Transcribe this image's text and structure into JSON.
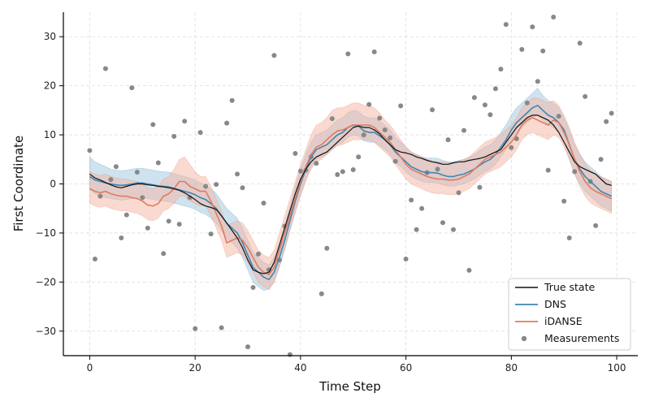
{
  "chart_data": {
    "type": "line",
    "title": "",
    "xlabel": "Time Step",
    "ylabel": "First Coordinate",
    "xlim": [
      -5,
      104
    ],
    "ylim": [
      -35,
      35
    ],
    "xticks": [
      0,
      20,
      40,
      60,
      80,
      100
    ],
    "yticks": [
      -30,
      -20,
      -10,
      0,
      10,
      20,
      30
    ],
    "xtick_labels": [
      "0",
      "20",
      "40",
      "60",
      "80",
      "100"
    ],
    "ytick_labels": [
      "−30",
      "−20",
      "−10",
      "0",
      "10",
      "20",
      "30"
    ],
    "grid": true,
    "legend_position": "bottom-right",
    "x": [
      0,
      1,
      2,
      3,
      4,
      5,
      6,
      7,
      8,
      9,
      10,
      11,
      12,
      13,
      14,
      15,
      16,
      17,
      18,
      19,
      20,
      21,
      22,
      23,
      24,
      25,
      26,
      27,
      28,
      29,
      30,
      31,
      32,
      33,
      34,
      35,
      36,
      37,
      38,
      39,
      40,
      41,
      42,
      43,
      44,
      45,
      46,
      47,
      48,
      49,
      50,
      51,
      52,
      53,
      54,
      55,
      56,
      57,
      58,
      59,
      60,
      61,
      62,
      63,
      64,
      65,
      66,
      67,
      68,
      69,
      70,
      71,
      72,
      73,
      74,
      75,
      76,
      77,
      78,
      79,
      80,
      81,
      82,
      83,
      84,
      85,
      86,
      87,
      88,
      89,
      90,
      91,
      92,
      93,
      94,
      95,
      96,
      97,
      98,
      99
    ],
    "series": [
      {
        "name": "True state",
        "color": "#111111",
        "values": [
          2.0,
          1.2,
          0.8,
          0.3,
          -0.2,
          -0.6,
          -0.8,
          -0.5,
          -0.2,
          0.0,
          0.0,
          -0.2,
          -0.3,
          -0.5,
          -0.6,
          -0.8,
          -1.0,
          -1.3,
          -1.8,
          -2.5,
          -3.2,
          -4.0,
          -4.5,
          -4.8,
          -5.2,
          -6.5,
          -8.0,
          -9.5,
          -11.0,
          -13.0,
          -15.5,
          -17.5,
          -18.0,
          -18.3,
          -18.0,
          -16.0,
          -12.5,
          -9.0,
          -5.5,
          -2.0,
          1.0,
          3.0,
          4.5,
          5.5,
          6.0,
          6.5,
          7.5,
          8.5,
          9.5,
          10.5,
          11.5,
          11.8,
          11.5,
          11.5,
          11.0,
          10.2,
          9.0,
          8.0,
          7.0,
          6.5,
          6.3,
          6.0,
          5.5,
          5.2,
          4.8,
          4.5,
          4.3,
          4.0,
          4.0,
          4.3,
          4.5,
          4.5,
          4.8,
          5.0,
          5.2,
          5.5,
          6.0,
          6.5,
          7.0,
          8.5,
          10.0,
          11.5,
          12.5,
          13.5,
          14.0,
          14.0,
          13.5,
          13.0,
          12.0,
          10.5,
          8.5,
          6.5,
          4.5,
          3.5,
          3.0,
          2.5,
          2.0,
          1.0,
          0.0,
          -0.3
        ]
      },
      {
        "name": "DNS",
        "color": "#3d86b5",
        "band_color": "#9fc8de",
        "values": [
          1.5,
          0.8,
          0.5,
          0.2,
          0.0,
          -0.2,
          -0.3,
          -0.2,
          0.0,
          0.2,
          0.2,
          0.0,
          -0.2,
          -0.4,
          -0.5,
          -0.6,
          -0.9,
          -1.2,
          -1.5,
          -1.8,
          -2.2,
          -2.8,
          -3.2,
          -4.0,
          -5.0,
          -6.5,
          -8.0,
          -9.0,
          -10.0,
          -12.0,
          -14.5,
          -17.0,
          -18.0,
          -19.0,
          -19.5,
          -18.0,
          -15.0,
          -11.5,
          -7.5,
          -3.5,
          0.0,
          3.0,
          5.5,
          7.0,
          7.5,
          8.0,
          9.0,
          10.0,
          10.5,
          11.5,
          12.0,
          11.8,
          10.8,
          10.5,
          10.5,
          9.8,
          9.0,
          8.0,
          6.5,
          5.5,
          4.5,
          3.5,
          3.0,
          2.5,
          2.3,
          2.3,
          2.2,
          1.8,
          1.5,
          1.5,
          1.8,
          2.0,
          2.5,
          3.0,
          3.8,
          4.5,
          5.0,
          6.0,
          7.5,
          9.0,
          11.0,
          12.5,
          13.5,
          14.5,
          15.5,
          16.0,
          15.0,
          14.0,
          13.5,
          12.5,
          11.0,
          8.0,
          5.0,
          3.0,
          1.5,
          0.5,
          -0.5,
          -1.5,
          -2.0,
          -2.5
        ],
        "lower": [
          -1.0,
          -2.0,
          -2.5,
          -2.8,
          -3.0,
          -3.2,
          -3.3,
          -3.2,
          -3.0,
          -2.8,
          -2.8,
          -3.0,
          -3.2,
          -3.4,
          -3.5,
          -3.6,
          -3.9,
          -4.2,
          -4.5,
          -4.8,
          -5.2,
          -5.8,
          -6.2,
          -7.0,
          -8.0,
          -9.5,
          -11.0,
          -12.0,
          -13.0,
          -15.0,
          -17.5,
          -20.0,
          -21.0,
          -21.7,
          -21.5,
          -20.0,
          -17.0,
          -13.5,
          -9.5,
          -5.5,
          -2.0,
          1.0,
          3.5,
          5.0,
          5.5,
          6.0,
          7.0,
          8.0,
          8.5,
          9.5,
          10.0,
          9.8,
          8.8,
          8.5,
          8.5,
          7.8,
          7.0,
          6.0,
          4.5,
          3.5,
          2.5,
          1.5,
          1.0,
          0.5,
          0.3,
          0.3,
          0.2,
          -0.2,
          -0.5,
          -0.5,
          -0.2,
          0.0,
          0.5,
          1.0,
          1.8,
          2.5,
          3.0,
          4.0,
          5.5,
          7.0,
          9.0,
          10.5,
          11.5,
          12.5,
          13.5,
          14.0,
          13.0,
          12.0,
          11.5,
          10.5,
          8.5,
          5.0,
          2.0,
          0.0,
          -1.5,
          -2.5,
          -3.5,
          -4.5,
          -5.0,
          -5.5
        ],
        "upper": [
          5.5,
          4.5,
          4.0,
          3.5,
          3.0,
          2.8,
          2.7,
          2.8,
          3.0,
          3.2,
          3.2,
          3.0,
          2.8,
          2.6,
          2.5,
          2.4,
          2.1,
          1.8,
          1.5,
          1.2,
          0.8,
          0.2,
          -0.2,
          -1.0,
          -2.0,
          -3.5,
          -5.0,
          -6.0,
          -7.0,
          -9.0,
          -11.5,
          -14.0,
          -15.0,
          -16.0,
          -16.5,
          -15.0,
          -12.0,
          -8.5,
          -4.5,
          -0.5,
          3.0,
          6.0,
          8.5,
          10.0,
          10.5,
          11.0,
          12.0,
          13.0,
          13.5,
          14.5,
          15.0,
          14.8,
          13.8,
          13.5,
          13.5,
          12.8,
          12.0,
          11.0,
          9.5,
          8.5,
          7.5,
          6.5,
          6.0,
          5.5,
          5.3,
          5.3,
          5.2,
          4.8,
          4.5,
          4.5,
          4.8,
          5.0,
          5.5,
          6.0,
          6.8,
          7.5,
          8.0,
          9.0,
          10.5,
          12.0,
          14.0,
          15.5,
          16.5,
          17.5,
          18.5,
          19.5,
          18.0,
          17.0,
          16.5,
          15.5,
          13.5,
          11.0,
          8.0,
          6.0,
          4.5,
          3.5,
          2.5,
          1.5,
          1.0,
          0.5
        ]
      },
      {
        "name": "iDANSE",
        "color": "#e07b5e",
        "band_color": "#f5b4a2",
        "values": [
          -1.0,
          -1.5,
          -1.8,
          -1.5,
          -2.0,
          -2.3,
          -2.5,
          -2.5,
          -2.8,
          -3.0,
          -3.5,
          -4.3,
          -4.5,
          -4.0,
          -2.5,
          -2.0,
          -1.0,
          0.5,
          0.5,
          -0.5,
          -1.0,
          -1.5,
          -1.5,
          -3.5,
          -6.0,
          -8.5,
          -12.0,
          -11.5,
          -11.0,
          -11.5,
          -13.0,
          -15.0,
          -17.0,
          -18.0,
          -18.5,
          -17.0,
          -13.5,
          -10.0,
          -6.5,
          -3.0,
          0.5,
          3.5,
          6.0,
          7.5,
          8.0,
          9.0,
          10.0,
          10.8,
          11.0,
          11.5,
          12.0,
          12.0,
          12.0,
          12.0,
          11.5,
          10.5,
          9.5,
          8.5,
          7.0,
          5.5,
          4.0,
          3.0,
          2.5,
          2.0,
          1.5,
          1.2,
          1.0,
          1.0,
          0.8,
          0.8,
          1.0,
          1.5,
          2.0,
          3.0,
          4.0,
          5.0,
          5.5,
          6.0,
          6.5,
          7.5,
          8.5,
          10.0,
          12.0,
          13.0,
          13.5,
          13.0,
          12.5,
          12.0,
          13.0,
          12.5,
          10.5,
          8.0,
          5.0,
          2.5,
          0.5,
          -0.8,
          -1.5,
          -2.0,
          -2.5,
          -3.0
        ],
        "lower": [
          -4.0,
          -4.5,
          -4.8,
          -4.5,
          -5.0,
          -5.3,
          -5.5,
          -5.5,
          -5.8,
          -6.0,
          -6.5,
          -7.3,
          -7.5,
          -7.0,
          -5.5,
          -5.0,
          -4.0,
          -2.5,
          -2.5,
          -3.5,
          -4.0,
          -4.5,
          -4.5,
          -6.5,
          -9.0,
          -11.5,
          -15.0,
          -14.5,
          -14.0,
          -14.5,
          -16.0,
          -18.0,
          -20.0,
          -21.0,
          -21.5,
          -20.0,
          -16.5,
          -13.0,
          -9.5,
          -6.0,
          -2.5,
          0.5,
          3.0,
          4.5,
          5.0,
          6.0,
          7.0,
          7.8,
          8.0,
          8.5,
          9.0,
          9.0,
          9.0,
          9.0,
          8.5,
          7.5,
          6.5,
          5.5,
          4.0,
          2.5,
          1.0,
          0.0,
          -0.5,
          -1.0,
          -1.5,
          -1.8,
          -2.0,
          -2.0,
          -2.2,
          -2.2,
          -2.0,
          -1.5,
          -1.0,
          0.0,
          1.0,
          2.0,
          2.5,
          3.0,
          3.5,
          4.5,
          5.5,
          7.0,
          9.0,
          10.0,
          10.5,
          10.0,
          9.5,
          9.0,
          10.0,
          9.5,
          7.5,
          5.0,
          2.0,
          -0.5,
          -2.5,
          -3.8,
          -4.5,
          -5.0,
          -5.5,
          -6.0
        ],
        "upper": [
          2.5,
          2.0,
          1.7,
          2.0,
          1.5,
          1.2,
          1.0,
          1.0,
          0.7,
          0.5,
          0.0,
          -0.8,
          -1.0,
          -0.5,
          1.0,
          1.5,
          3.0,
          5.0,
          5.5,
          4.0,
          2.5,
          1.5,
          1.5,
          -0.5,
          -3.0,
          -5.5,
          -8.5,
          -8.0,
          -7.5,
          -8.0,
          -9.5,
          -11.5,
          -13.5,
          -14.5,
          -15.0,
          -13.5,
          -10.0,
          -6.5,
          -3.0,
          0.5,
          4.0,
          7.0,
          10.0,
          12.0,
          12.5,
          13.5,
          15.0,
          15.5,
          15.5,
          16.0,
          16.5,
          16.5,
          16.0,
          16.0,
          15.5,
          14.5,
          13.0,
          12.0,
          10.5,
          9.0,
          7.5,
          6.5,
          6.0,
          5.5,
          5.0,
          4.7,
          4.5,
          4.5,
          4.3,
          4.3,
          4.5,
          5.0,
          5.5,
          6.5,
          7.5,
          8.5,
          9.0,
          9.5,
          10.0,
          11.0,
          12.0,
          13.5,
          15.5,
          16.5,
          17.5,
          17.5,
          17.0,
          16.5,
          17.0,
          16.0,
          14.0,
          11.5,
          8.5,
          6.0,
          4.0,
          2.7,
          2.0,
          1.5,
          1.0,
          0.5
        ]
      }
    ],
    "measurements": {
      "name": "Measurements",
      "color": "#888888",
      "x": [
        0,
        1,
        2,
        3,
        4,
        5,
        6,
        7,
        8,
        9,
        10,
        11,
        12,
        13,
        14,
        15,
        16,
        17,
        18,
        19,
        20,
        21,
        22,
        23,
        24,
        25,
        26,
        27,
        28,
        29,
        30,
        31,
        32,
        33,
        34,
        35,
        36,
        37,
        38,
        39,
        40,
        41,
        42,
        43,
        44,
        45,
        46,
        47,
        48,
        49,
        50,
        51,
        52,
        53,
        54,
        55,
        56,
        57,
        58,
        59,
        60,
        61,
        62,
        63,
        64,
        65,
        66,
        67,
        68,
        69,
        70,
        71,
        72,
        73,
        74,
        75,
        76,
        77,
        78,
        79,
        80,
        81,
        82,
        83,
        84,
        85,
        86,
        87,
        88,
        89,
        90,
        91,
        92,
        93,
        94,
        95,
        96,
        97,
        98,
        99
      ],
      "values": [
        6.8,
        -15.3,
        -2.5,
        23.5,
        0.9,
        3.5,
        -11.0,
        -6.3,
        19.6,
        2.4,
        -2.8,
        -9.0,
        12.1,
        4.3,
        -14.2,
        -7.6,
        9.7,
        -8.2,
        12.8,
        -2.8,
        -29.5,
        10.5,
        -0.5,
        -10.2,
        -0.1,
        -29.3,
        12.4,
        17.0,
        2.0,
        -0.8,
        -33.2,
        -21.1,
        -14.3,
        -3.9,
        -17.5,
        26.2,
        -15.5,
        -8.6,
        -34.8,
        6.2,
        2.6,
        2.8,
        5.5,
        4.2,
        -22.4,
        -13.1,
        13.3,
        1.9,
        2.5,
        26.5,
        2.9,
        5.5,
        10.0,
        16.2,
        26.9,
        13.4,
        11.0,
        9.4,
        4.6,
        15.9,
        -15.3,
        -3.3,
        -9.3,
        -5.0,
        2.3,
        15.1,
        3.0,
        -7.9,
        9.0,
        -9.3,
        -1.8,
        10.9,
        -17.6,
        17.6,
        -0.7,
        16.1,
        14.1,
        19.4,
        23.4,
        32.5,
        7.4,
        9.2,
        27.4,
        16.5,
        32.0,
        20.9,
        27.1,
        2.8,
        34.0,
        13.8,
        -3.5,
        -11.0,
        2.5,
        28.7,
        17.8,
        0.5,
        -8.5,
        5.0,
        12.7,
        14.4
      ]
    },
    "legend": [
      "True state",
      "DNS",
      "iDANSE",
      "Measurements"
    ]
  }
}
